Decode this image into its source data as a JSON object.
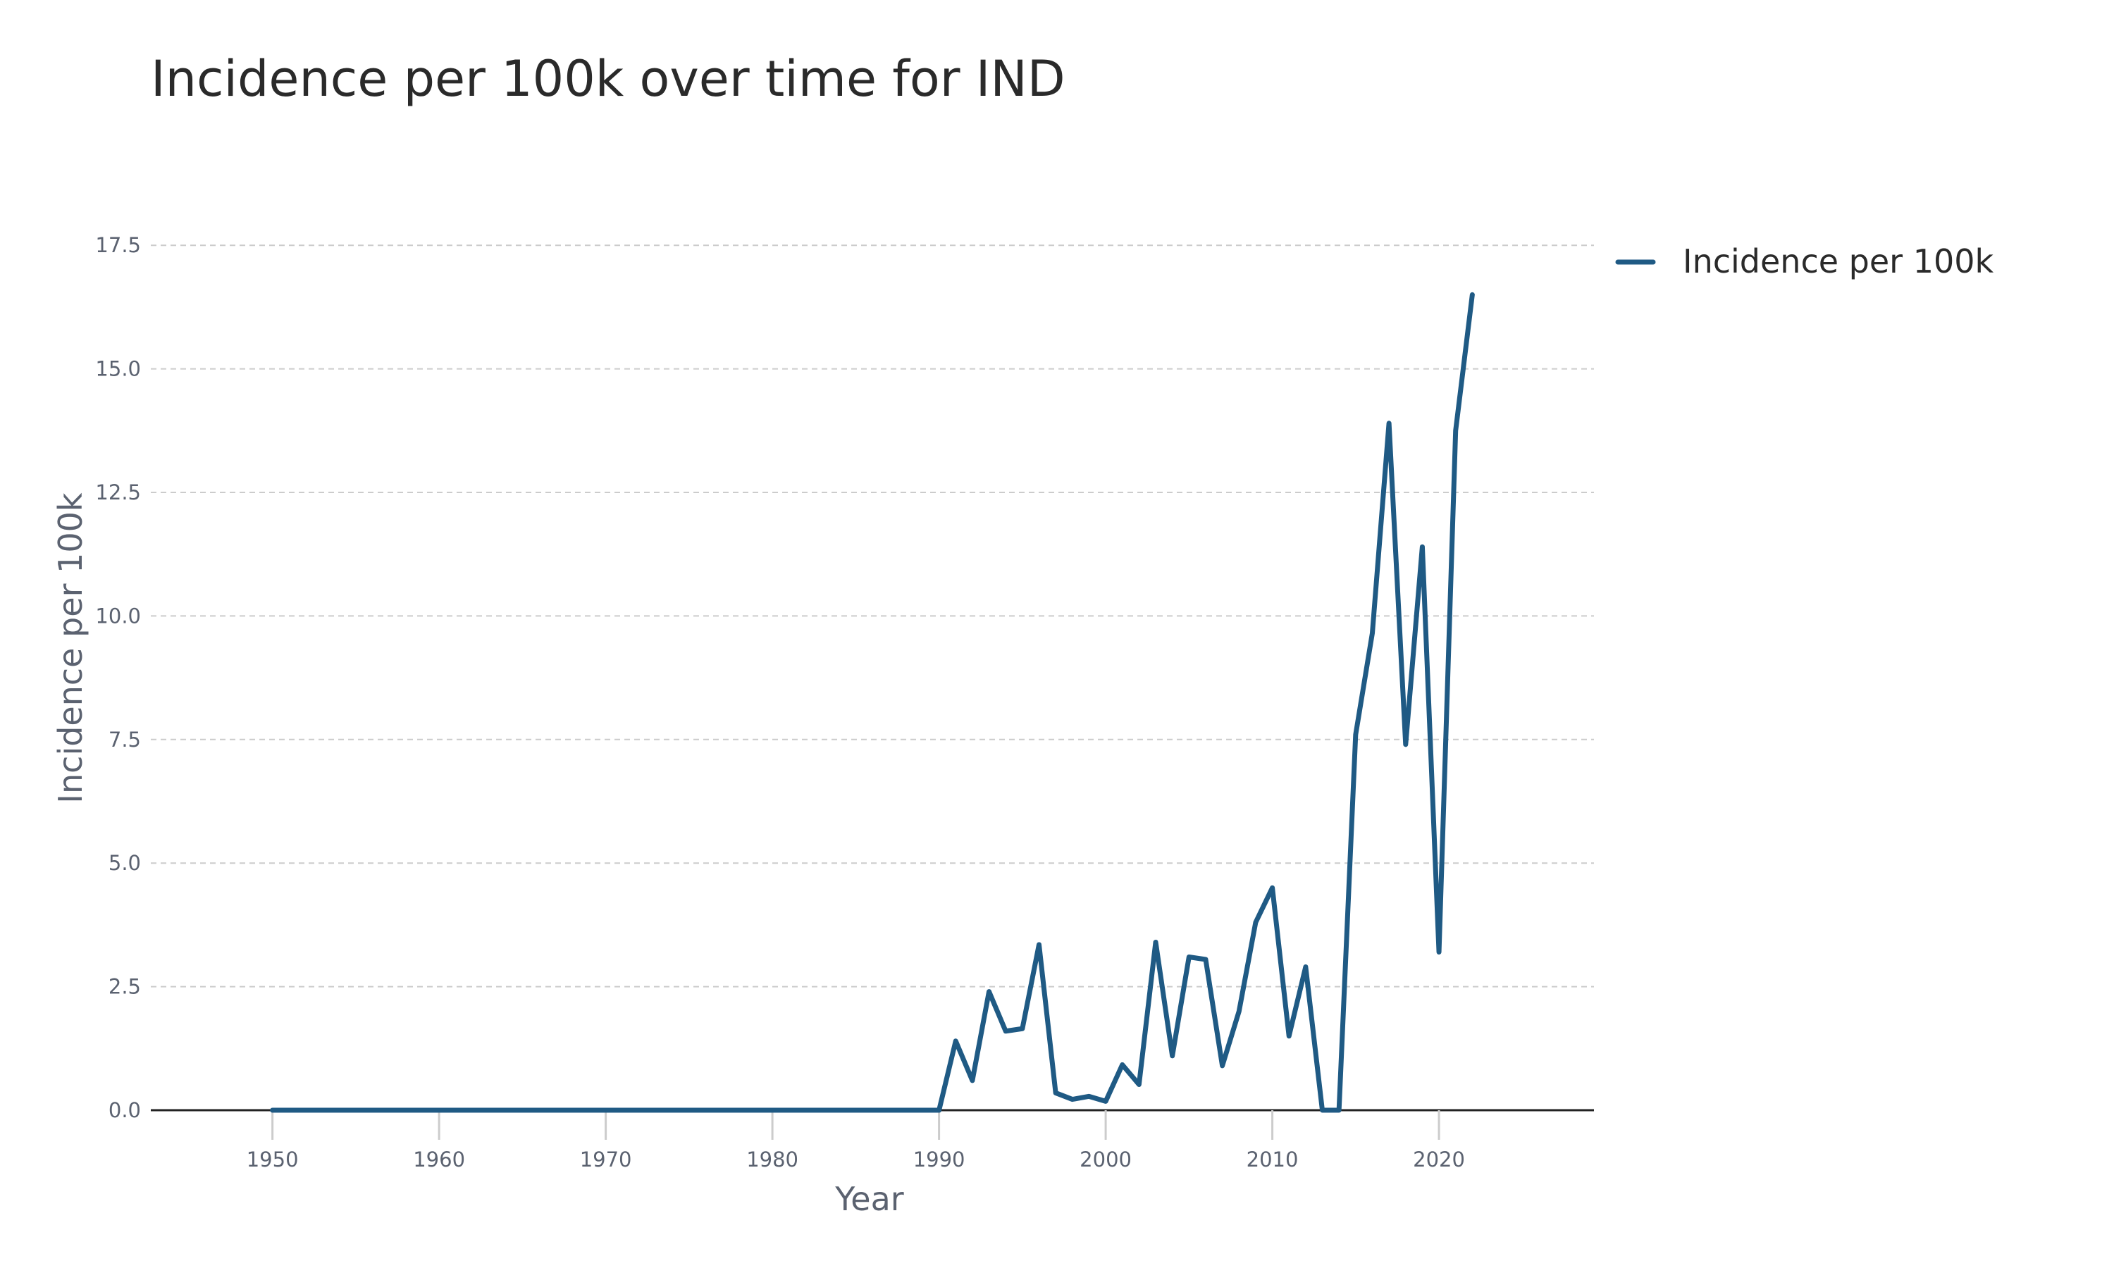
{
  "chart_data": {
    "type": "line",
    "title": "Incidence per 100k over time for IND",
    "xlabel": "Year",
    "ylabel": "Incidence per 100k",
    "xlim": [
      1942.7,
      2029.3
    ],
    "ylim": [
      0,
      18.9
    ],
    "x_ticks": [
      1950,
      1960,
      1970,
      1980,
      1990,
      2000,
      2010,
      2020
    ],
    "x_tick_labels": [
      "1950",
      "1960",
      "1970",
      "1980",
      "1990",
      "2000",
      "2010",
      "2020"
    ],
    "y_ticks": [
      0,
      2.5,
      5,
      7.5,
      10,
      12.5,
      15,
      17.5
    ],
    "y_tick_labels": [
      "0.0",
      "2.5",
      "5.0",
      "7.5",
      "10.0",
      "12.5",
      "15.0",
      "17.5"
    ],
    "grid": "horizontal dashed",
    "legend_position": "top-right",
    "series": [
      {
        "name": "Incidence per 100k",
        "color": "#1f5a84",
        "x": [
          1950,
          1951,
          1952,
          1953,
          1954,
          1955,
          1956,
          1957,
          1958,
          1959,
          1960,
          1961,
          1962,
          1963,
          1964,
          1965,
          1966,
          1967,
          1968,
          1969,
          1970,
          1971,
          1972,
          1973,
          1974,
          1975,
          1976,
          1977,
          1978,
          1979,
          1980,
          1981,
          1982,
          1983,
          1984,
          1985,
          1986,
          1987,
          1988,
          1989,
          1990,
          1991,
          1992,
          1993,
          1994,
          1995,
          1996,
          1997,
          1998,
          1999,
          2000,
          2001,
          2002,
          2003,
          2004,
          2005,
          2006,
          2007,
          2008,
          2009,
          2010,
          2011,
          2012,
          2013,
          2014,
          2015,
          2016,
          2017,
          2018,
          2019,
          2020,
          2021,
          2022
        ],
        "y": [
          0,
          0,
          0,
          0,
          0,
          0,
          0,
          0,
          0,
          0,
          0,
          0,
          0,
          0,
          0,
          0,
          0,
          0,
          0,
          0,
          0,
          0,
          0,
          0,
          0,
          0,
          0,
          0,
          0,
          0,
          0,
          0,
          0,
          0,
          0,
          0,
          0,
          0,
          0,
          0,
          0,
          1.4,
          0.6,
          2.4,
          1.6,
          1.65,
          3.35,
          0.35,
          0.22,
          0.28,
          0.18,
          0.92,
          0.52,
          3.4,
          1.1,
          3.1,
          3.05,
          0.9,
          2.0,
          3.8,
          4.5,
          1.5,
          2.9,
          0,
          0,
          7.6,
          9.65,
          13.9,
          7.4,
          11.4,
          3.2,
          13.75,
          16.5
        ]
      }
    ]
  }
}
